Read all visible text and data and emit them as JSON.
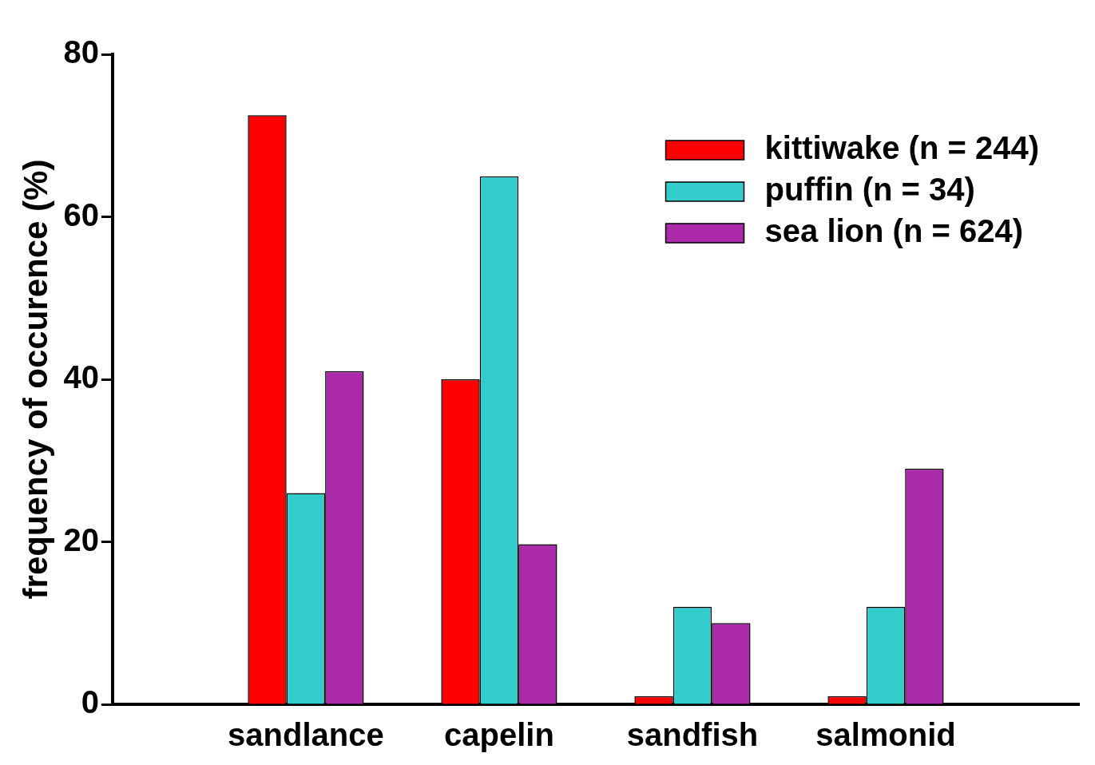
{
  "chart_data": {
    "type": "bar",
    "ylabel": "frequency of occurence (%)",
    "categories": [
      "sandlance",
      "capelin",
      "sandfish",
      "salmonid"
    ],
    "series": [
      {
        "name": "kittiwake (n = 244)",
        "color": "#ff0000",
        "values": [
          72.5,
          40,
          1,
          1
        ]
      },
      {
        "name": "puffin (n = 34)",
        "color": "#33cccc",
        "values": [
          26,
          65,
          12,
          12
        ]
      },
      {
        "name": "sea lion (n = 624)",
        "color": "#aa2aaa",
        "values": [
          41,
          19.7,
          10,
          29
        ]
      }
    ],
    "ylim": [
      0,
      80
    ],
    "yticks": [
      0,
      20,
      40,
      60,
      80
    ],
    "grid": false,
    "legend": "top right"
  }
}
